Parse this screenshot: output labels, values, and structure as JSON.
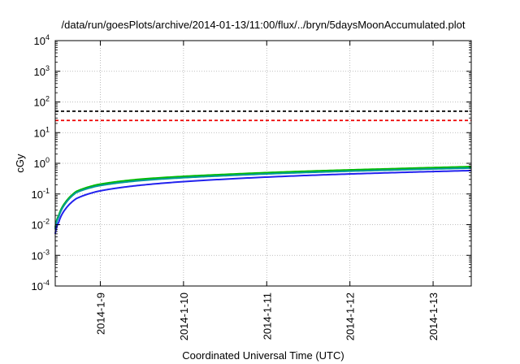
{
  "chart_data": {
    "type": "line",
    "title": "/data/run/goesPlots/archive/2014-01-13/11:00/flux/../bryn/5daysMoonAccumulated.plot",
    "xlabel": "Coordinated Universal Time (UTC)",
    "ylabel": "cGy",
    "y_scale": "log",
    "ylim": [
      0.0001,
      10000
    ],
    "y_ticks": [
      {
        "value": 0.0001,
        "base": "10",
        "exp": "-4"
      },
      {
        "value": 0.001,
        "base": "10",
        "exp": "-3"
      },
      {
        "value": 0.01,
        "base": "10",
        "exp": "-2"
      },
      {
        "value": 0.1,
        "base": "10",
        "exp": "-1"
      },
      {
        "value": 1,
        "base": "10",
        "exp": "0"
      },
      {
        "value": 10,
        "base": "10",
        "exp": "1"
      },
      {
        "value": 100,
        "base": "10",
        "exp": "2"
      },
      {
        "value": 1000,
        "base": "10",
        "exp": "3"
      },
      {
        "value": 10000,
        "base": "10",
        "exp": "4"
      }
    ],
    "xlim": [
      "2014-01-08 11:00",
      "2014-01-13 11:00"
    ],
    "x_ticks": [
      "2014-1-9",
      "2014-1-10",
      "2014-1-11",
      "2014-1-12",
      "2014-1-13"
    ],
    "grid": true,
    "legend": "none",
    "reference_lines": [
      {
        "value": 50,
        "color": "#000000",
        "style": "dashed"
      },
      {
        "value": 25,
        "color": "#ee0000",
        "style": "dashed"
      }
    ],
    "series": [
      {
        "color": "#00bb00",
        "x": [
          "2014-01-08 11:00",
          "2014-01-08 12:00",
          "2014-01-08 14:00",
          "2014-01-08 17:00",
          "2014-01-08 23:00",
          "2014-01-09 11:00",
          "2014-01-10 11:00",
          "2014-01-11 11:00",
          "2014-01-12 11:00",
          "2014-01-13 11:00"
        ],
        "y": [
          0.008,
          0.02,
          0.055,
          0.12,
          0.2,
          0.3,
          0.43,
          0.55,
          0.66,
          0.78
        ]
      },
      {
        "color": "#009999",
        "x": [
          "2014-01-08 11:00",
          "2014-01-08 12:00",
          "2014-01-08 14:00",
          "2014-01-08 17:00",
          "2014-01-08 23:00",
          "2014-01-09 11:00",
          "2014-01-10 11:00",
          "2014-01-11 11:00",
          "2014-01-12 11:00",
          "2014-01-13 11:00"
        ],
        "y": [
          0.007,
          0.018,
          0.05,
          0.11,
          0.18,
          0.27,
          0.39,
          0.5,
          0.6,
          0.7
        ]
      },
      {
        "color": "#2222ee",
        "x": [
          "2014-01-08 11:00",
          "2014-01-08 12:00",
          "2014-01-08 14:00",
          "2014-01-08 17:00",
          "2014-01-08 23:00",
          "2014-01-09 11:00",
          "2014-01-10 11:00",
          "2014-01-11 11:00",
          "2014-01-12 11:00",
          "2014-01-13 11:00"
        ],
        "y": [
          0.005,
          0.012,
          0.033,
          0.07,
          0.12,
          0.19,
          0.3,
          0.4,
          0.49,
          0.58
        ]
      }
    ]
  }
}
